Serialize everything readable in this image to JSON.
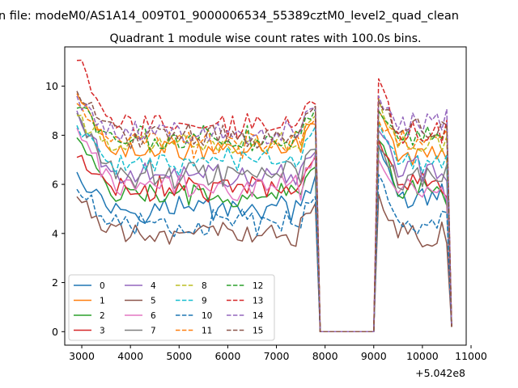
{
  "chart_data": {
    "type": "line",
    "suptitle": "n file: modeM0/AS1A14_009T01_9000006534_55389cztM0_level2_quad_clean",
    "title": "Quadrant 1 module wise count rates with 100.0s bins.",
    "xlabel": "",
    "ylabel": "",
    "x_offset_label": "+5.042e8",
    "xlim": [
      2650,
      10900
    ],
    "ylim": [
      -0.55,
      11.6
    ],
    "xticks": [
      3000,
      4000,
      5000,
      6000,
      7000,
      8000,
      9000,
      10000,
      11000
    ],
    "yticks": [
      0,
      2,
      4,
      6,
      8,
      10
    ],
    "grid": false,
    "legend_placement": "lower-left",
    "legend_columns": 4,
    "time_grid": {
      "seg1_start": 2900,
      "seg1_end": 7800,
      "step": 100,
      "gap_start": 7900,
      "gap_end": 9000,
      "seg2_start": 9100,
      "seg2_end": 10500,
      "final": 10600
    },
    "series": [
      {
        "name": "0",
        "color": "#1f77b4",
        "style": "solid",
        "level": 5.05,
        "start": 6.5,
        "peak": 7.6,
        "end2": 5.5,
        "last": 0.2
      },
      {
        "name": "1",
        "color": "#ff7f0e",
        "style": "solid",
        "level": 7.45,
        "start": 9.7,
        "peak": 9.0,
        "end2": 7.2,
        "last": 0.2
      },
      {
        "name": "2",
        "color": "#2ca02c",
        "style": "solid",
        "level": 5.55,
        "start": 7.9,
        "peak": 7.8,
        "end2": 5.7,
        "last": 0.2
      },
      {
        "name": "3",
        "color": "#d62728",
        "style": "solid",
        "level": 5.8,
        "start": 7.1,
        "peak": 7.8,
        "end2": 6.0,
        "last": 0.2
      },
      {
        "name": "4",
        "color": "#9467bd",
        "style": "solid",
        "level": 6.3,
        "start": 9.0,
        "peak": 8.2,
        "end2": 6.6,
        "last": 0.2
      },
      {
        "name": "5",
        "color": "#8c564b",
        "style": "solid",
        "level": 4.05,
        "start": 5.5,
        "peak": 5.6,
        "end2": 4.0,
        "last": 0.2
      },
      {
        "name": "6",
        "color": "#e377c2",
        "style": "solid",
        "level": 5.9,
        "start": 8.3,
        "peak": 7.0,
        "end2": 5.7,
        "last": 0.2
      },
      {
        "name": "7",
        "color": "#7f7f7f",
        "style": "solid",
        "level": 6.4,
        "start": 8.9,
        "peak": 7.5,
        "end2": 6.2,
        "last": 0.2
      },
      {
        "name": "8",
        "color": "#bcbd22",
        "style": "dashed",
        "level": 7.6,
        "start": 8.8,
        "peak": 9.5,
        "end2": 7.7,
        "last": 0.2
      },
      {
        "name": "9",
        "color": "#17becf",
        "style": "dashed",
        "level": 7.0,
        "start": 8.4,
        "peak": 8.5,
        "end2": 6.9,
        "last": 0.2
      },
      {
        "name": "10",
        "color": "#1f77b4",
        "style": "dashed",
        "level": 4.45,
        "start": 5.8,
        "peak": 6.4,
        "end2": 4.5,
        "last": 0.2
      },
      {
        "name": "11",
        "color": "#ff7f0e",
        "style": "dashed",
        "level": 7.65,
        "start": 9.3,
        "peak": 8.6,
        "end2": 7.8,
        "last": 0.2
      },
      {
        "name": "12",
        "color": "#2ca02c",
        "style": "dashed",
        "level": 7.9,
        "start": 9.1,
        "peak": 9.0,
        "end2": 8.0,
        "last": 0.2
      },
      {
        "name": "13",
        "color": "#d62728",
        "style": "dashed",
        "level": 8.4,
        "start": 11.05,
        "peak": 10.3,
        "end2": 8.1,
        "last": 0.2
      },
      {
        "name": "14",
        "color": "#9467bd",
        "style": "dashed",
        "level": 8.1,
        "start": 9.6,
        "peak": 9.6,
        "end2": 8.5,
        "last": 0.2
      },
      {
        "name": "15",
        "color": "#8c564b",
        "style": "dashed",
        "level": 8.0,
        "start": 9.8,
        "peak": 9.4,
        "end2": 8.2,
        "last": 0.2
      }
    ]
  }
}
